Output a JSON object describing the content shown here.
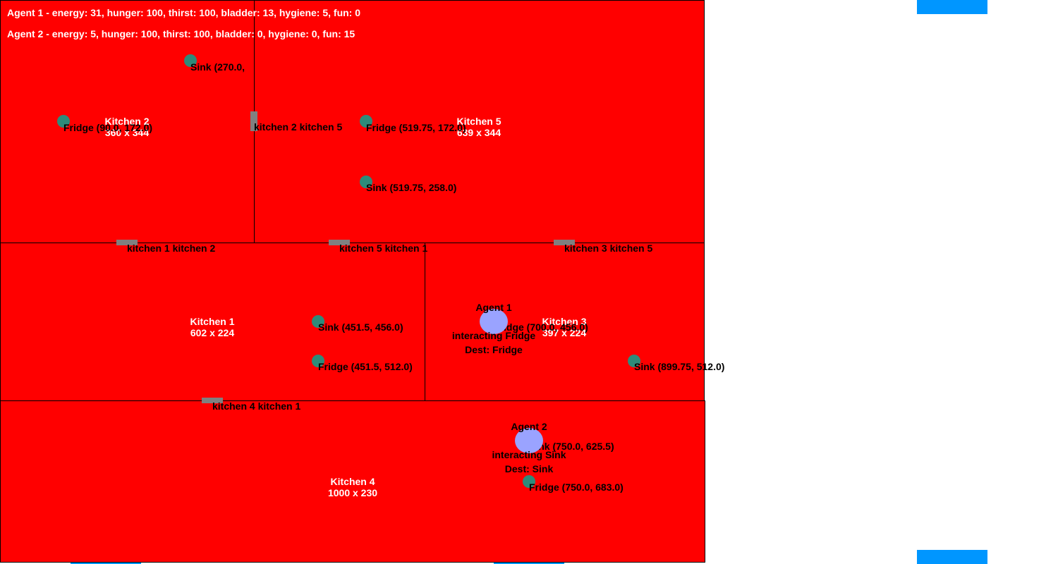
{
  "hud": {
    "agent1_status": "Agent 1 - energy: 31, hunger: 100, thirst: 100, bladder: 13, hygiene: 5, fun: 0",
    "agent2_status": "Agent 2 - energy: 5, hunger: 100, thirst: 100, bladder: 0, hygiene: 0, fun: 15"
  },
  "rooms": [
    {
      "name": "Kitchen 2",
      "size": "360 x 344"
    },
    {
      "name": "Kitchen 5",
      "size": "639 x 344"
    },
    {
      "name": "Kitchen 1",
      "size": "602 x 224"
    },
    {
      "name": "Kitchen 3",
      "size": "397 x 224"
    },
    {
      "name": "Kitchen 4",
      "size": "1000 x 230"
    }
  ],
  "doors": [
    {
      "label": "kitchen 2 kitchen 5"
    },
    {
      "label": "kitchen 1 kitchen 2"
    },
    {
      "label": "kitchen 5 kitchen 1"
    },
    {
      "label": "kitchen 3 kitchen 5"
    },
    {
      "label": "kitchen 4 kitchen 1"
    }
  ],
  "objects": [
    {
      "label": "Sink (270.0,"
    },
    {
      "label": "Fridge (90.0, 172.0)"
    },
    {
      "label": "Fridge (519.75, 172.0)"
    },
    {
      "label": "Sink (519.75, 258.0)"
    },
    {
      "label": "Sink (451.5, 456.0)"
    },
    {
      "label": "Fridge (451.5, 512.0)"
    },
    {
      "label": "Fridge (700.0, 456.0)"
    },
    {
      "label": "Sink (899.75, 512.0)"
    },
    {
      "label": "Sink (750.0, 625.5)"
    },
    {
      "label": "Fridge (750.0, 683.0)"
    }
  ],
  "agents": [
    {
      "name": "Agent 1",
      "state": "interacting Fridge",
      "dest": "Dest: Fridge"
    },
    {
      "name": "Agent 2",
      "state": "interacting Sink",
      "dest": "Dest: Sink"
    }
  ],
  "colors": {
    "room_fill": "#ff0000",
    "door": "#808080",
    "object": "#2e8b7a",
    "agent": "#9aa3ff",
    "window": "#0096ff"
  }
}
